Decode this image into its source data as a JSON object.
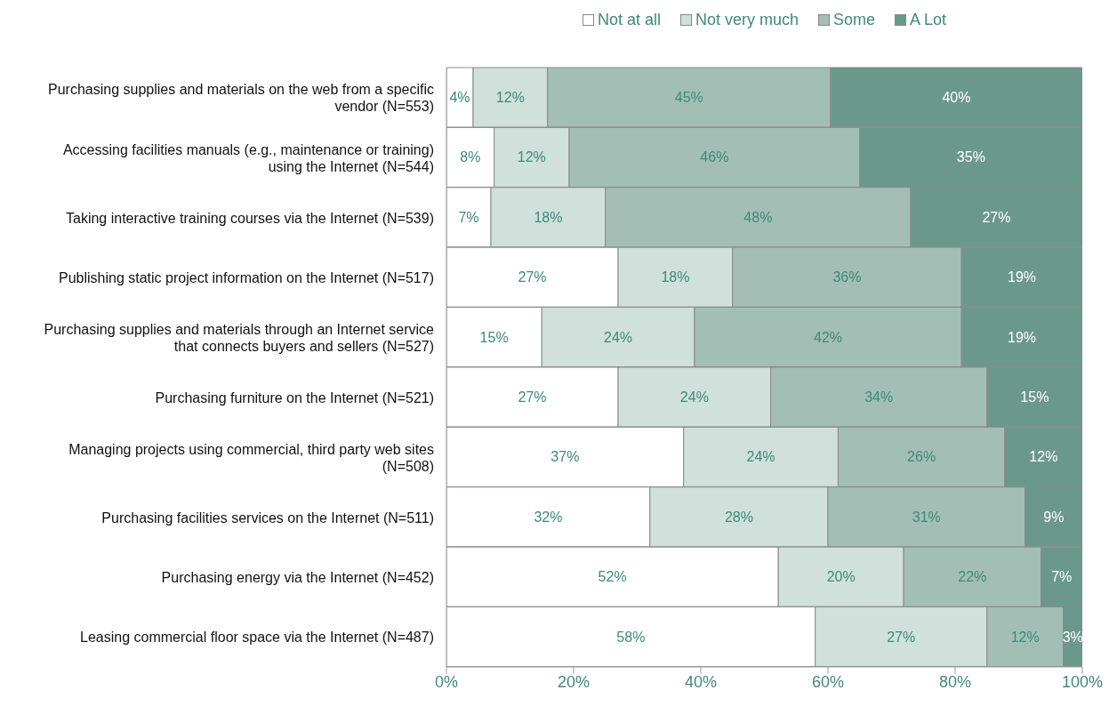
{
  "chart_data": {
    "type": "bar",
    "orientation": "horizontal",
    "stacked": true,
    "legend": "top",
    "grid": false,
    "categories": [
      "Purchasing supplies and materials on the web from a specific vendor (N=553)",
      "Accessing facilities manuals (e.g., maintenance or training) using the Internet (N=544)",
      "Taking interactive training courses via the Internet (N=539)",
      "Publishing static project information on the Internet (N=517)",
      "Purchasing supplies and materials through an Internet service that connects buyers and sellers (N=527)",
      "Purchasing furniture on the Internet (N=521)",
      "Managing projects using commercial, third party web sites (N=508)",
      "Purchasing facilities services on the Internet (N=511)",
      "Purchasing energy via the Internet (N=452)",
      "Leasing commercial floor space via the Internet (N=487)"
    ],
    "series": [
      {
        "name": "Not at all",
        "color": "#ffffff",
        "values": [
          4.2,
          7.5,
          7,
          27,
          15,
          27,
          37.3,
          32,
          52.2,
          58
        ],
        "value_labels": [
          "4%",
          "8%",
          "7%",
          "27%",
          "15%",
          "27%",
          "37%",
          "32%",
          "52%",
          "58%"
        ]
      },
      {
        "name": "Not very much",
        "color": "#d0e0db",
        "values": [
          11.7,
          11.8,
          18,
          18,
          24,
          24,
          24.3,
          28,
          19.7,
          27
        ],
        "value_labels": [
          "12%",
          "12%",
          "18%",
          "18%",
          "24%",
          "24%",
          "24%",
          "28%",
          "20%",
          "27%"
        ]
      },
      {
        "name": "Some",
        "color": "#a3beb5",
        "values": [
          44.5,
          45.7,
          48,
          36,
          42,
          34,
          26.2,
          31,
          21.6,
          12
        ],
        "value_labels": [
          "45%",
          "46%",
          "48%",
          "36%",
          "42%",
          "34%",
          "26%",
          "31%",
          "22%",
          "12%"
        ]
      },
      {
        "name": "A Lot",
        "color": "#6a998b",
        "values": [
          39.6,
          35,
          27,
          19,
          19,
          15,
          12.2,
          9,
          6.5,
          3
        ],
        "value_labels": [
          "40%",
          "35%",
          "27%",
          "19%",
          "19%",
          "15%",
          "12%",
          "9%",
          "7%",
          "3%"
        ]
      }
    ],
    "xlim": [
      0,
      100
    ],
    "xticks": [
      {
        "value": 0,
        "label": "0%"
      },
      {
        "value": 20,
        "label": "20%"
      },
      {
        "value": 40,
        "label": "40%"
      },
      {
        "value": 60,
        "label": "60%"
      },
      {
        "value": 80,
        "label": "80%"
      },
      {
        "value": 100,
        "label": "100%"
      }
    ]
  }
}
